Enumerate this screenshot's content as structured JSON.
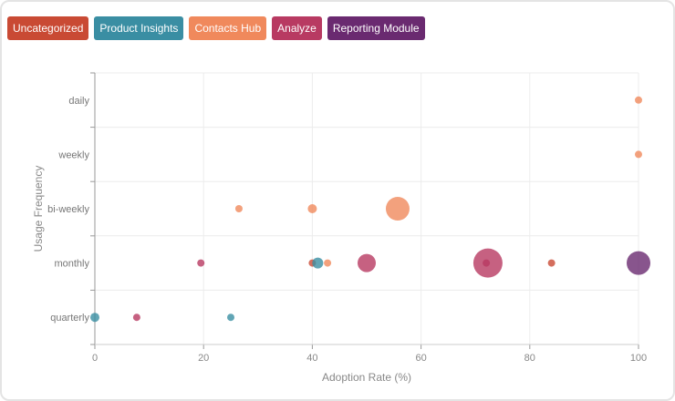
{
  "chart_data": {
    "type": "scatter",
    "xlabel": "Adoption Rate (%)",
    "ylabel": "Usage Frequency",
    "xlim": [
      0,
      100
    ],
    "xticks": [
      0,
      20,
      40,
      60,
      80,
      100
    ],
    "ycategories": [
      "quarterly",
      "monthly",
      "bi-weekly",
      "weekly",
      "daily"
    ],
    "grid": true,
    "legend_placement": "top-left",
    "series": [
      {
        "name": "Uncategorized",
        "color": "#c94a34",
        "points": [
          {
            "x": 40,
            "y": "monthly",
            "size": 4
          },
          {
            "x": 84,
            "y": "monthly",
            "size": 4
          }
        ]
      },
      {
        "name": "Product Insights",
        "color": "#3a8ea3",
        "points": [
          {
            "x": 41,
            "y": "monthly",
            "size": 6
          },
          {
            "x": 0,
            "y": "quarterly",
            "size": 5
          },
          {
            "x": 25,
            "y": "quarterly",
            "size": 4
          }
        ]
      },
      {
        "name": "Contacts Hub",
        "color": "#f0895c",
        "points": [
          {
            "x": 100,
            "y": "daily",
            "size": 4
          },
          {
            "x": 100,
            "y": "weekly",
            "size": 4
          },
          {
            "x": 26.5,
            "y": "bi-weekly",
            "size": 4
          },
          {
            "x": 40,
            "y": "bi-weekly",
            "size": 5
          },
          {
            "x": 55.7,
            "y": "bi-weekly",
            "size": 13
          },
          {
            "x": 42.8,
            "y": "monthly",
            "size": 4
          }
        ]
      },
      {
        "name": "Analyze",
        "color": "#b83a62",
        "points": [
          {
            "x": 19.5,
            "y": "monthly",
            "size": 4
          },
          {
            "x": 50,
            "y": "monthly",
            "size": 10
          },
          {
            "x": 72.3,
            "y": "monthly",
            "size": 16
          },
          {
            "x": 72,
            "y": "monthly",
            "size": 4
          },
          {
            "x": 7.7,
            "y": "quarterly",
            "size": 4
          }
        ]
      },
      {
        "name": "Reporting Module",
        "color": "#6a2a70",
        "points": [
          {
            "x": 100,
            "y": "monthly",
            "size": 13
          }
        ]
      }
    ]
  }
}
